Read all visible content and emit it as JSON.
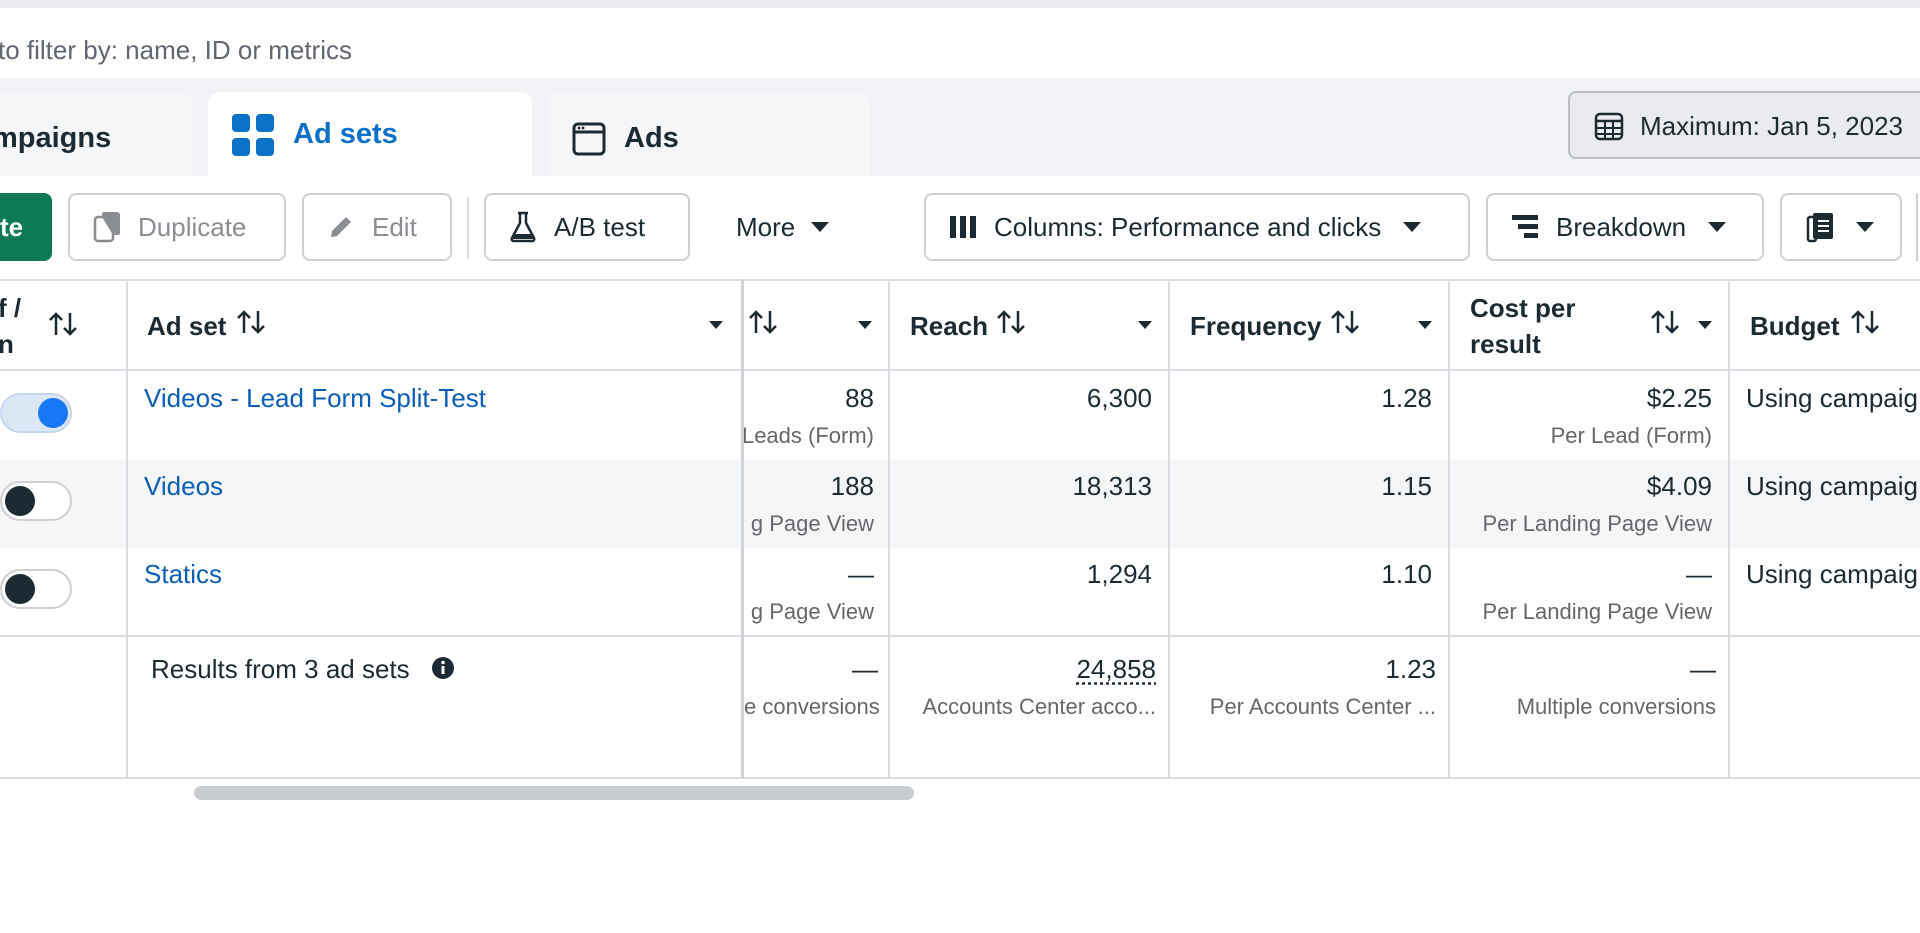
{
  "filter": {
    "placeholder_visible": "to filter by: name, ID or metrics"
  },
  "tabs": {
    "campaigns": "mpaigns",
    "ad_sets": "Ad sets",
    "ads": "Ads"
  },
  "date_range": {
    "label": "Maximum: Jan 5, 2023"
  },
  "toolbar": {
    "create_partial": "te",
    "duplicate": "Duplicate",
    "edit": "Edit",
    "ab_test": "A/B test",
    "more": "More",
    "columns": "Columns: Performance and clicks",
    "breakdown": "Breakdown"
  },
  "table": {
    "headers": {
      "offon_line1": "f /",
      "offon_line2": "n",
      "ad_set": "Ad set",
      "reach": "Reach",
      "frequency": "Frequency",
      "cost_line1": "Cost per",
      "cost_line2": "result",
      "budget": "Budget"
    },
    "rows": [
      {
        "name": "Videos - Lead Form Split-Test",
        "on": true,
        "results": "88",
        "results_sub": "Leads (Form)",
        "reach": "6,300",
        "frequency": "1.28",
        "cost": "$2.25",
        "cost_sub": "Per Lead (Form)",
        "budget": "Using campaig"
      },
      {
        "name": "Videos",
        "on": false,
        "results": "188",
        "results_sub": "g Page View",
        "reach": "18,313",
        "frequency": "1.15",
        "cost": "$4.09",
        "cost_sub": "Per Landing Page View",
        "budget": "Using campaig"
      },
      {
        "name": "Statics",
        "on": false,
        "results": "—",
        "results_sub": "g Page View",
        "reach": "1,294",
        "frequency": "1.10",
        "cost": "—",
        "cost_sub": "Per Landing Page View",
        "budget": "Using campaig"
      }
    ],
    "totals": {
      "label": "Results from 3 ad sets",
      "results": "—",
      "results_sub": "e conversions",
      "reach": "24,858",
      "reach_sub": "Accounts Center acco...",
      "frequency": "1.23",
      "frequency_sub": "Per Accounts Center ...",
      "cost": "—",
      "cost_sub": "Multiple conversions"
    }
  },
  "colors": {
    "accent_blue": "#1877f2",
    "link_blue": "#0a5eb8",
    "create_green": "#0b7a55",
    "active_tab_blue": "#0a71c9"
  }
}
